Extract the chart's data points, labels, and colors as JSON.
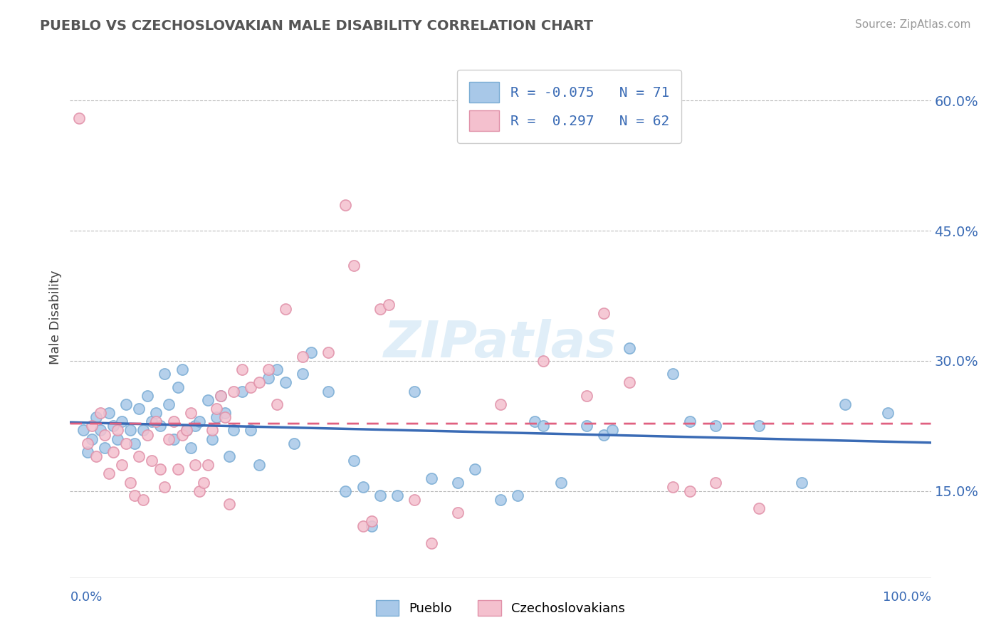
{
  "title": "PUEBLO VS CZECHOSLOVAKIAN MALE DISABILITY CORRELATION CHART",
  "source": "Source: ZipAtlas.com",
  "ylabel": "Male Disability",
  "xlim": [
    0,
    100
  ],
  "ylim": [
    5,
    65
  ],
  "yticks": [
    15.0,
    30.0,
    45.0,
    60.0
  ],
  "ytick_labels": [
    "15.0%",
    "30.0%",
    "45.0%",
    "60.0%"
  ],
  "pueblo_color": "#a8c8e8",
  "pueblo_edge_color": "#7aacd4",
  "czechoslovakian_color": "#f4c0ce",
  "czechoslovakian_edge_color": "#e090a8",
  "pueblo_line_color": "#3a6bb5",
  "czechoslovakian_line_color": "#e06080",
  "watermark": "ZIPatlas",
  "pueblo_R": -0.075,
  "pueblo_N": 71,
  "czechoslovakian_R": 0.297,
  "czechoslovakian_N": 62,
  "pueblo_points": [
    [
      1.5,
      22.0
    ],
    [
      2.0,
      19.5
    ],
    [
      2.5,
      21.0
    ],
    [
      3.0,
      23.5
    ],
    [
      3.5,
      22.0
    ],
    [
      4.0,
      20.0
    ],
    [
      4.5,
      24.0
    ],
    [
      5.0,
      22.5
    ],
    [
      5.5,
      21.0
    ],
    [
      6.0,
      23.0
    ],
    [
      6.5,
      25.0
    ],
    [
      7.0,
      22.0
    ],
    [
      7.5,
      20.5
    ],
    [
      8.0,
      24.5
    ],
    [
      8.5,
      22.0
    ],
    [
      9.0,
      26.0
    ],
    [
      9.5,
      23.0
    ],
    [
      10.0,
      24.0
    ],
    [
      10.5,
      22.5
    ],
    [
      11.0,
      28.5
    ],
    [
      11.5,
      25.0
    ],
    [
      12.0,
      21.0
    ],
    [
      12.5,
      27.0
    ],
    [
      13.0,
      29.0
    ],
    [
      13.5,
      22.0
    ],
    [
      14.0,
      20.0
    ],
    [
      14.5,
      22.5
    ],
    [
      15.0,
      23.0
    ],
    [
      16.0,
      25.5
    ],
    [
      16.5,
      21.0
    ],
    [
      17.0,
      23.5
    ],
    [
      17.5,
      26.0
    ],
    [
      18.0,
      24.0
    ],
    [
      18.5,
      19.0
    ],
    [
      19.0,
      22.0
    ],
    [
      20.0,
      26.5
    ],
    [
      21.0,
      22.0
    ],
    [
      22.0,
      18.0
    ],
    [
      23.0,
      28.0
    ],
    [
      24.0,
      29.0
    ],
    [
      25.0,
      27.5
    ],
    [
      26.0,
      20.5
    ],
    [
      27.0,
      28.5
    ],
    [
      28.0,
      31.0
    ],
    [
      30.0,
      26.5
    ],
    [
      32.0,
      15.0
    ],
    [
      33.0,
      18.5
    ],
    [
      34.0,
      15.5
    ],
    [
      35.0,
      11.0
    ],
    [
      36.0,
      14.5
    ],
    [
      38.0,
      14.5
    ],
    [
      40.0,
      26.5
    ],
    [
      42.0,
      16.5
    ],
    [
      45.0,
      16.0
    ],
    [
      47.0,
      17.5
    ],
    [
      50.0,
      14.0
    ],
    [
      52.0,
      14.5
    ],
    [
      54.0,
      23.0
    ],
    [
      55.0,
      22.5
    ],
    [
      57.0,
      16.0
    ],
    [
      60.0,
      22.5
    ],
    [
      62.0,
      21.5
    ],
    [
      63.0,
      22.0
    ],
    [
      65.0,
      31.5
    ],
    [
      70.0,
      28.5
    ],
    [
      72.0,
      23.0
    ],
    [
      75.0,
      22.5
    ],
    [
      80.0,
      22.5
    ],
    [
      85.0,
      16.0
    ],
    [
      90.0,
      25.0
    ],
    [
      95.0,
      24.0
    ]
  ],
  "czechoslovakian_points": [
    [
      1.0,
      58.0
    ],
    [
      2.0,
      20.5
    ],
    [
      2.5,
      22.5
    ],
    [
      3.0,
      19.0
    ],
    [
      3.5,
      24.0
    ],
    [
      4.0,
      21.5
    ],
    [
      4.5,
      17.0
    ],
    [
      5.0,
      19.5
    ],
    [
      5.5,
      22.0
    ],
    [
      6.0,
      18.0
    ],
    [
      6.5,
      20.5
    ],
    [
      7.0,
      16.0
    ],
    [
      7.5,
      14.5
    ],
    [
      8.0,
      19.0
    ],
    [
      8.5,
      14.0
    ],
    [
      9.0,
      21.5
    ],
    [
      9.5,
      18.5
    ],
    [
      10.0,
      23.0
    ],
    [
      10.5,
      17.5
    ],
    [
      11.0,
      15.5
    ],
    [
      11.5,
      21.0
    ],
    [
      12.0,
      23.0
    ],
    [
      12.5,
      17.5
    ],
    [
      13.0,
      21.5
    ],
    [
      13.5,
      22.0
    ],
    [
      14.0,
      24.0
    ],
    [
      14.5,
      18.0
    ],
    [
      15.0,
      15.0
    ],
    [
      15.5,
      16.0
    ],
    [
      16.0,
      18.0
    ],
    [
      16.5,
      22.0
    ],
    [
      17.0,
      24.5
    ],
    [
      17.5,
      26.0
    ],
    [
      18.0,
      23.5
    ],
    [
      18.5,
      13.5
    ],
    [
      19.0,
      26.5
    ],
    [
      20.0,
      29.0
    ],
    [
      21.0,
      27.0
    ],
    [
      22.0,
      27.5
    ],
    [
      23.0,
      29.0
    ],
    [
      24.0,
      25.0
    ],
    [
      25.0,
      36.0
    ],
    [
      27.0,
      30.5
    ],
    [
      30.0,
      31.0
    ],
    [
      32.0,
      48.0
    ],
    [
      33.0,
      41.0
    ],
    [
      34.0,
      11.0
    ],
    [
      35.0,
      11.5
    ],
    [
      36.0,
      36.0
    ],
    [
      37.0,
      36.5
    ],
    [
      40.0,
      14.0
    ],
    [
      42.0,
      9.0
    ],
    [
      45.0,
      12.5
    ],
    [
      50.0,
      25.0
    ],
    [
      55.0,
      30.0
    ],
    [
      60.0,
      26.0
    ],
    [
      62.0,
      35.5
    ],
    [
      65.0,
      27.5
    ],
    [
      70.0,
      15.5
    ],
    [
      72.0,
      15.0
    ],
    [
      75.0,
      16.0
    ],
    [
      80.0,
      13.0
    ]
  ]
}
